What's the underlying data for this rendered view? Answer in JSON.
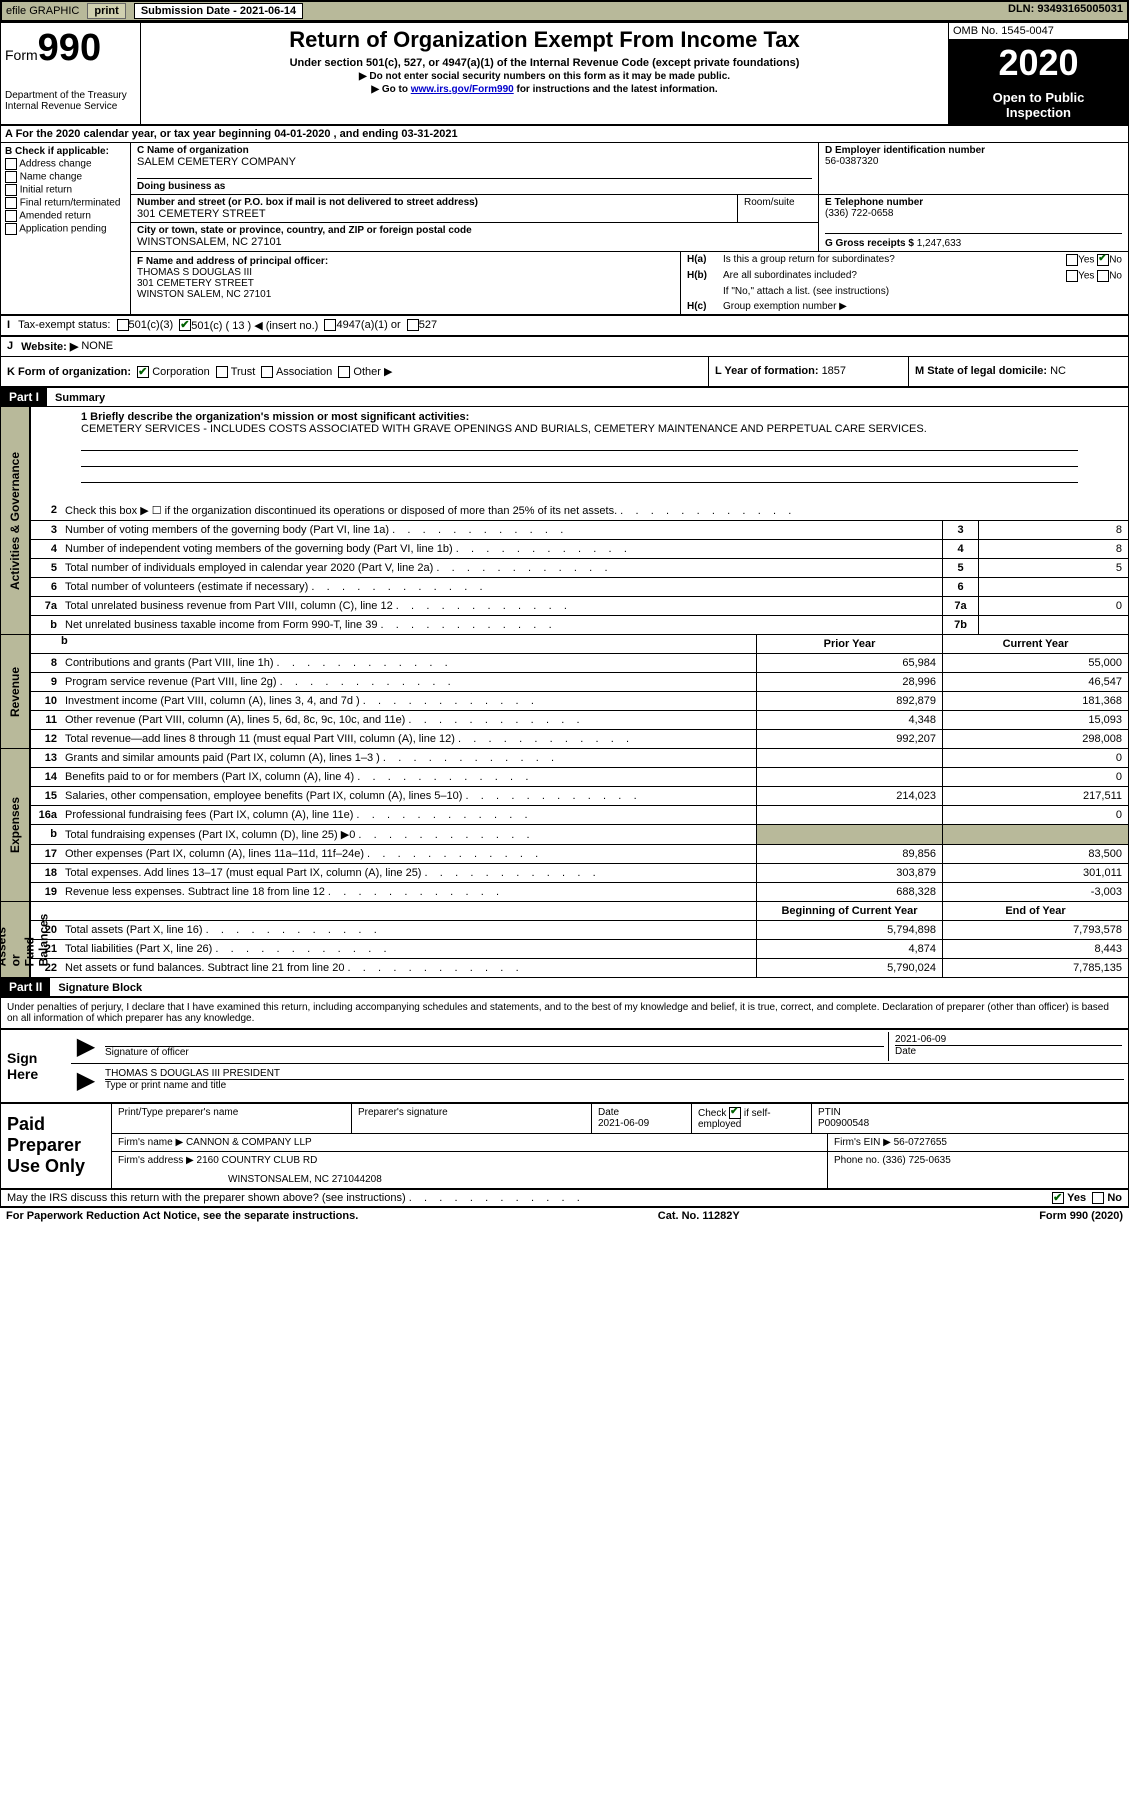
{
  "topbar": {
    "efile": "efile GRAPHIC",
    "print": "print",
    "sub_date_label": "Submission Date - ",
    "sub_date": "2021-06-14",
    "dln_label": "DLN: ",
    "dln": "93493165005031"
  },
  "header": {
    "form_prefix": "Form",
    "form_num": "990",
    "dept": "Department of the Treasury\nInternal Revenue Service",
    "title": "Return of Organization Exempt From Income Tax",
    "sub1": "Under section 501(c), 527, or 4947(a)(1) of the Internal Revenue Code (except private foundations)",
    "sub2": "▶ Do not enter social security numbers on this form as it may be made public.",
    "sub3_pre": "▶ Go to ",
    "sub3_link": "www.irs.gov/Form990",
    "sub3_post": " for instructions and the latest information.",
    "omb": "OMB No. 1545-0047",
    "year": "2020",
    "open_pub": "Open to Public\nInspection"
  },
  "line_a": "A For the 2020 calendar year, or tax year beginning 04-01-2020    , and ending 03-31-2021",
  "colB": {
    "title": "B Check if applicable:",
    "addr": "Address change",
    "name": "Name change",
    "init": "Initial return",
    "final": "Final return/terminated",
    "amend": "Amended return",
    "app": "Application pending"
  },
  "colC": {
    "name_lbl": "C Name of organization",
    "name": "SALEM CEMETERY COMPANY",
    "dba_lbl": "Doing business as",
    "dba": "",
    "addr_lbl": "Number and street (or P.O. box if mail is not delivered to street address)",
    "room_lbl": "Room/suite",
    "addr": "301 CEMETERY STREET",
    "city_lbl": "City or town, state or province, country, and ZIP or foreign postal code",
    "city": "WINSTONSALEM, NC  27101"
  },
  "colD": {
    "ein_lbl": "D Employer identification number",
    "ein": "56-0387320",
    "tel_lbl": "E Telephone number",
    "tel": "(336) 722-0658",
    "gross_lbl": "G Gross receipts $ ",
    "gross": "1,247,633"
  },
  "colF": {
    "lbl": "F  Name and address of principal officer:",
    "name": "THOMAS S DOUGLAS III",
    "addr1": "301 CEMETERY STREET",
    "addr2": "WINSTON SALEM, NC  27101"
  },
  "colH": {
    "ha_lbl": "H(a)",
    "ha_txt": "Is this a group return for subordinates?",
    "ha_yes": "Yes",
    "ha_no": "No",
    "hb_lbl": "H(b)",
    "hb_txt": "Are all subordinates included?",
    "hb_note": "If \"No,\" attach a list. (see instructions)",
    "hc_lbl": "H(c)",
    "hc_txt": "Group exemption number ▶"
  },
  "lineI": {
    "lbl": "I",
    "txt": "Tax-exempt status:",
    "o1": "501(c)(3)",
    "o2": "501(c) ( 13 ) ◀ (insert no.)",
    "o3": "4947(a)(1) or",
    "o4": "527"
  },
  "lineJ": {
    "lbl": "J",
    "txt": "Website: ▶",
    "val": "NONE"
  },
  "lineK": {
    "lbl": "K Form of organization:",
    "corp": "Corporation",
    "trust": "Trust",
    "assoc": "Association",
    "other": "Other ▶",
    "l_lbl": "L Year of formation: ",
    "l_val": "1857",
    "m_lbl": "M State of legal domicile: ",
    "m_val": "NC"
  },
  "part1": {
    "hdr": "Part I",
    "title": "Summary"
  },
  "mission": {
    "q": "1  Briefly describe the organization's mission or most significant activities:",
    "a": "CEMETERY SERVICES - INCLUDES COSTS ASSOCIATED WITH GRAVE OPENINGS AND BURIALS, CEMETERY MAINTENANCE AND PERPETUAL CARE SERVICES."
  },
  "gov_rows": [
    {
      "n": "2",
      "d": "Check this box ▶ ☐  if the organization discontinued its operations or disposed of more than 25% of its net assets.",
      "box": "",
      "v": ""
    },
    {
      "n": "3",
      "d": "Number of voting members of the governing body (Part VI, line 1a)",
      "box": "3",
      "v": "8"
    },
    {
      "n": "4",
      "d": "Number of independent voting members of the governing body (Part VI, line 1b)",
      "box": "4",
      "v": "8"
    },
    {
      "n": "5",
      "d": "Total number of individuals employed in calendar year 2020 (Part V, line 2a)",
      "box": "5",
      "v": "5"
    },
    {
      "n": "6",
      "d": "Total number of volunteers (estimate if necessary)",
      "box": "6",
      "v": ""
    },
    {
      "n": "7a",
      "d": "Total unrelated business revenue from Part VIII, column (C), line 12",
      "box": "7a",
      "v": "0"
    },
    {
      "n": "b",
      "d": "Net unrelated business taxable income from Form 990-T, line 39",
      "box": "7b",
      "v": ""
    }
  ],
  "two_col_hdr": {
    "prior": "Prior Year",
    "current": "Current Year"
  },
  "revenue_rows": [
    {
      "n": "8",
      "d": "Contributions and grants (Part VIII, line 1h)",
      "c1": "65,984",
      "c2": "55,000"
    },
    {
      "n": "9",
      "d": "Program service revenue (Part VIII, line 2g)",
      "c1": "28,996",
      "c2": "46,547"
    },
    {
      "n": "10",
      "d": "Investment income (Part VIII, column (A), lines 3, 4, and 7d )",
      "c1": "892,879",
      "c2": "181,368"
    },
    {
      "n": "11",
      "d": "Other revenue (Part VIII, column (A), lines 5, 6d, 8c, 9c, 10c, and 11e)",
      "c1": "4,348",
      "c2": "15,093"
    },
    {
      "n": "12",
      "d": "Total revenue—add lines 8 through 11 (must equal Part VIII, column (A), line 12)",
      "c1": "992,207",
      "c2": "298,008"
    }
  ],
  "expense_rows": [
    {
      "n": "13",
      "d": "Grants and similar amounts paid (Part IX, column (A), lines 1–3 )",
      "c1": "",
      "c2": "0"
    },
    {
      "n": "14",
      "d": "Benefits paid to or for members (Part IX, column (A), line 4)",
      "c1": "",
      "c2": "0"
    },
    {
      "n": "15",
      "d": "Salaries, other compensation, employee benefits (Part IX, column (A), lines 5–10)",
      "c1": "214,023",
      "c2": "217,511"
    },
    {
      "n": "16a",
      "d": "Professional fundraising fees (Part IX, column (A), line 11e)",
      "c1": "",
      "c2": "0"
    },
    {
      "n": "b",
      "d": "Total fundraising expenses (Part IX, column (D), line 25) ▶0",
      "c1": "shaded",
      "c2": "shaded"
    },
    {
      "n": "17",
      "d": "Other expenses (Part IX, column (A), lines 11a–11d, 11f–24e)",
      "c1": "89,856",
      "c2": "83,500"
    },
    {
      "n": "18",
      "d": "Total expenses. Add lines 13–17 (must equal Part IX, column (A), line 25)",
      "c1": "303,879",
      "c2": "301,011"
    },
    {
      "n": "19",
      "d": "Revenue less expenses. Subtract line 18 from line 12",
      "c1": "688,328",
      "c2": "-3,003"
    }
  ],
  "net_hdr": {
    "begin": "Beginning of Current Year",
    "end": "End of Year"
  },
  "net_rows": [
    {
      "n": "20",
      "d": "Total assets (Part X, line 16)",
      "c1": "5,794,898",
      "c2": "7,793,578"
    },
    {
      "n": "21",
      "d": "Total liabilities (Part X, line 26)",
      "c1": "4,874",
      "c2": "8,443"
    },
    {
      "n": "22",
      "d": "Net assets or fund balances. Subtract line 21 from line 20",
      "c1": "5,790,024",
      "c2": "7,785,135"
    }
  ],
  "part2": {
    "hdr": "Part II",
    "title": "Signature Block"
  },
  "sig_decl": "Under penalties of perjury, I declare that I have examined this return, including accompanying schedules and statements, and to the best of my knowledge and belief, it is true, correct, and complete. Declaration of preparer (other than officer) is based on all information of which preparer has any knowledge.",
  "sign_here": "Sign\nHere",
  "sig": {
    "sig_lbl": "Signature of officer",
    "date_lbl": "Date",
    "date": "2021-06-09",
    "name": "THOMAS S DOUGLAS III  PRESIDENT",
    "name_lbl": "Type or print name and title"
  },
  "paid_prep": "Paid\nPreparer\nUse Only",
  "prep": {
    "r1c1": "Print/Type preparer's name",
    "r1c2": "Preparer's signature",
    "r1c3_lbl": "Date",
    "r1c3": "2021-06-09",
    "r1c4_lbl": "Check ☑ if self-employed",
    "r1c5_lbl": "PTIN",
    "r1c5": "P00900548",
    "r2c1_lbl": "Firm's name    ▶ ",
    "r2c1": "CANNON & COMPANY LLP",
    "r2c2_lbl": "Firm's EIN ▶ ",
    "r2c2": "56-0727655",
    "r3c1_lbl": "Firm's address ▶ ",
    "r3c1": "2160 COUNTRY CLUB RD",
    "r3c1b": "WINSTONSALEM, NC  271044208",
    "r3c2_lbl": "Phone no. ",
    "r3c2": "(336) 725-0635"
  },
  "discuss": {
    "q": "May the IRS discuss this return with the preparer shown above? (see instructions)",
    "yes": "Yes",
    "no": "No"
  },
  "footer": {
    "l": "For Paperwork Reduction Act Notice, see the separate instructions.",
    "m": "Cat. No. 11282Y",
    "r": "Form 990 (2020)"
  },
  "sidebars": {
    "gov": "Activities & Governance",
    "rev": "Revenue",
    "exp": "Expenses",
    "net": "Net Assets or\nFund Balances"
  }
}
